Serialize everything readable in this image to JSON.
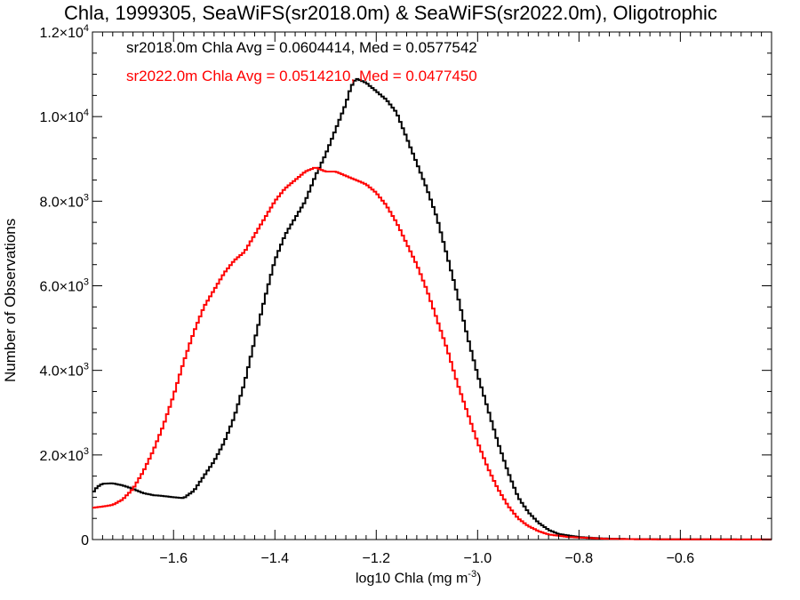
{
  "chart_data": {
    "type": "line",
    "title": "Chla, 1999305, SeaWiFS(sr2018.0m) & SeaWiFS(sr2022.0m), Oligotrophic",
    "xlabel": "log10 Chla (mg m",
    "xlabel_sup": "-3",
    "xlabel_tail": ")",
    "ylabel": "Number of Observations",
    "xlim": [
      -1.76,
      -0.42
    ],
    "ylim": [
      0,
      12000
    ],
    "xticks": [
      {
        "value": -1.6,
        "label": "−1.6"
      },
      {
        "value": -1.4,
        "label": "−1.4"
      },
      {
        "value": -1.2,
        "label": "−1.2"
      },
      {
        "value": -1.0,
        "label": "−1.0"
      },
      {
        "value": -0.8,
        "label": "−0.8"
      },
      {
        "value": -0.6,
        "label": "−0.6"
      }
    ],
    "yticks": [
      {
        "value": 0,
        "mant": "0",
        "exp": ""
      },
      {
        "value": 2000,
        "mant": "2.0×10",
        "exp": "3"
      },
      {
        "value": 4000,
        "mant": "4.0×10",
        "exp": "3"
      },
      {
        "value": 6000,
        "mant": "6.0×10",
        "exp": "3"
      },
      {
        "value": 8000,
        "mant": "8.0×10",
        "exp": "3"
      },
      {
        "value": 10000,
        "mant": "1.0×10",
        "exp": "4"
      },
      {
        "value": 12000,
        "mant": "1.2×10",
        "exp": "4"
      }
    ],
    "annotations": [
      "sr2018.0m Chla Avg = 0.0604414, Med = 0.0577542",
      "sr2022.0m Chla Avg = 0.0514210, Med = 0.0477450"
    ],
    "series": [
      {
        "color": "#000000",
        "points": [
          [
            -1.76,
            1100
          ],
          [
            -1.75,
            1250
          ],
          [
            -1.74,
            1320
          ],
          [
            -1.72,
            1330
          ],
          [
            -1.7,
            1280
          ],
          [
            -1.68,
            1200
          ],
          [
            -1.66,
            1100
          ],
          [
            -1.64,
            1050
          ],
          [
            -1.62,
            1030
          ],
          [
            -1.6,
            1000
          ],
          [
            -1.58,
            980
          ],
          [
            -1.56,
            1150
          ],
          [
            -1.54,
            1500
          ],
          [
            -1.52,
            1850
          ],
          [
            -1.5,
            2300
          ],
          [
            -1.48,
            2900
          ],
          [
            -1.46,
            3700
          ],
          [
            -1.44,
            4700
          ],
          [
            -1.42,
            5700
          ],
          [
            -1.4,
            6600
          ],
          [
            -1.38,
            7200
          ],
          [
            -1.36,
            7600
          ],
          [
            -1.34,
            8000
          ],
          [
            -1.32,
            8600
          ],
          [
            -1.3,
            9100
          ],
          [
            -1.28,
            9700
          ],
          [
            -1.26,
            10300
          ],
          [
            -1.25,
            10700
          ],
          [
            -1.24,
            10900
          ],
          [
            -1.22,
            10800
          ],
          [
            -1.2,
            10600
          ],
          [
            -1.18,
            10400
          ],
          [
            -1.16,
            10100
          ],
          [
            -1.14,
            9500
          ],
          [
            -1.12,
            8900
          ],
          [
            -1.1,
            8300
          ],
          [
            -1.08,
            7600
          ],
          [
            -1.06,
            6700
          ],
          [
            -1.04,
            5800
          ],
          [
            -1.02,
            4800
          ],
          [
            -1.0,
            3900
          ],
          [
            -0.98,
            3100
          ],
          [
            -0.96,
            2300
          ],
          [
            -0.94,
            1600
          ],
          [
            -0.92,
            1000
          ],
          [
            -0.9,
            650
          ],
          [
            -0.88,
            400
          ],
          [
            -0.86,
            230
          ],
          [
            -0.84,
            130
          ],
          [
            -0.8,
            60
          ],
          [
            -0.75,
            25
          ],
          [
            -0.7,
            10
          ],
          [
            -0.6,
            5
          ],
          [
            -0.42,
            2
          ]
        ]
      },
      {
        "color": "#ff0000",
        "points": [
          [
            -1.76,
            750
          ],
          [
            -1.74,
            780
          ],
          [
            -1.72,
            820
          ],
          [
            -1.7,
            950
          ],
          [
            -1.68,
            1200
          ],
          [
            -1.66,
            1600
          ],
          [
            -1.64,
            2100
          ],
          [
            -1.62,
            2700
          ],
          [
            -1.6,
            3400
          ],
          [
            -1.58,
            4200
          ],
          [
            -1.56,
            4900
          ],
          [
            -1.54,
            5500
          ],
          [
            -1.52,
            5900
          ],
          [
            -1.5,
            6300
          ],
          [
            -1.48,
            6600
          ],
          [
            -1.46,
            6800
          ],
          [
            -1.44,
            7200
          ],
          [
            -1.42,
            7600
          ],
          [
            -1.4,
            8000
          ],
          [
            -1.38,
            8300
          ],
          [
            -1.36,
            8500
          ],
          [
            -1.34,
            8700
          ],
          [
            -1.32,
            8800
          ],
          [
            -1.3,
            8700
          ],
          [
            -1.28,
            8700
          ],
          [
            -1.26,
            8600
          ],
          [
            -1.24,
            8500
          ],
          [
            -1.22,
            8400
          ],
          [
            -1.2,
            8200
          ],
          [
            -1.18,
            7900
          ],
          [
            -1.16,
            7500
          ],
          [
            -1.14,
            7000
          ],
          [
            -1.12,
            6500
          ],
          [
            -1.1,
            5900
          ],
          [
            -1.08,
            5200
          ],
          [
            -1.06,
            4500
          ],
          [
            -1.04,
            3700
          ],
          [
            -1.02,
            3000
          ],
          [
            -1.0,
            2300
          ],
          [
            -0.98,
            1700
          ],
          [
            -0.96,
            1200
          ],
          [
            -0.94,
            800
          ],
          [
            -0.92,
            500
          ],
          [
            -0.9,
            320
          ],
          [
            -0.88,
            200
          ],
          [
            -0.86,
            120
          ],
          [
            -0.82,
            60
          ],
          [
            -0.75,
            20
          ],
          [
            -0.7,
            10
          ],
          [
            -0.6,
            4
          ],
          [
            -0.42,
            2
          ]
        ]
      }
    ]
  }
}
